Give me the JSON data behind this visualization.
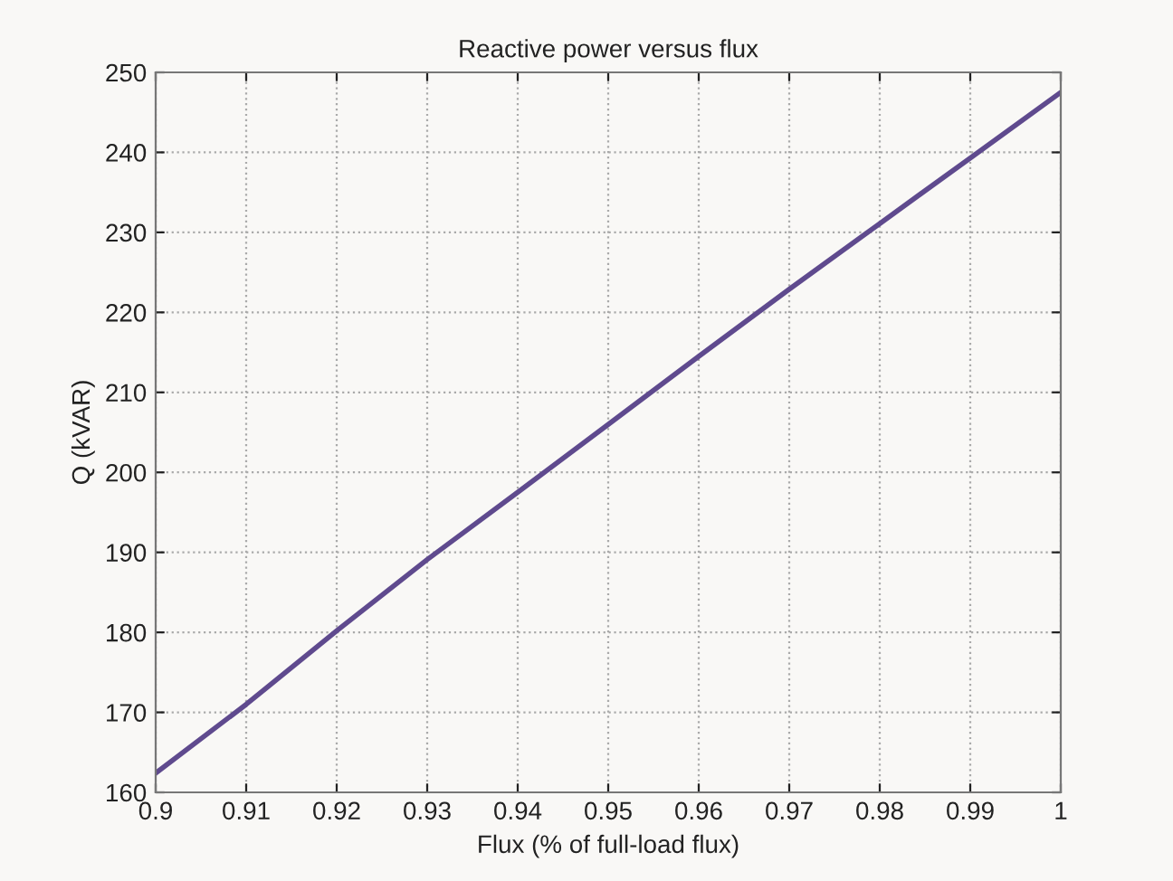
{
  "chart_data": {
    "type": "line",
    "title": "Reactive power versus flux",
    "xlabel": "Flux (% of full-load flux)",
    "ylabel": "Q (kVAR)",
    "x": [
      0.9,
      0.91,
      0.92,
      0.93,
      0.94,
      0.95,
      0.96,
      0.97,
      0.98,
      0.99,
      1.0
    ],
    "series": [
      {
        "color": "#5f4a8e",
        "values": [
          162.4,
          171.0,
          180.2,
          189.1,
          197.5,
          206.0,
          214.5,
          222.9,
          231.1,
          239.3,
          247.5
        ]
      }
    ],
    "xlim": [
      0.9,
      1.0
    ],
    "xticks": [
      0.9,
      0.91,
      0.92,
      0.93,
      0.94,
      0.95,
      0.96,
      0.97,
      0.98,
      0.99,
      {
        "value": 1.0,
        "label": "1"
      }
    ],
    "ylim": [
      160,
      250
    ],
    "yticks": [
      160,
      170,
      180,
      190,
      200,
      210,
      220,
      230,
      240,
      250
    ],
    "grid": true,
    "legend": false,
    "marker": "none",
    "line_style": "solid"
  }
}
